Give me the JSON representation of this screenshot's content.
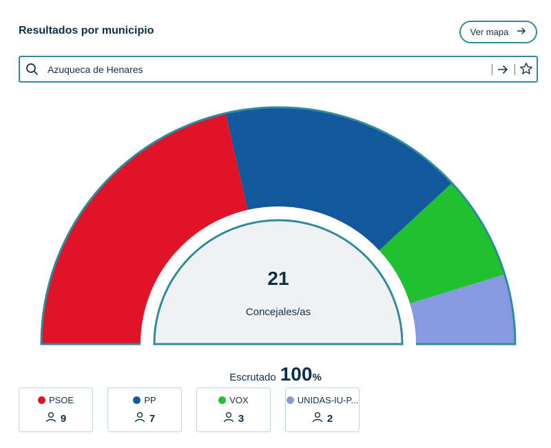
{
  "header": {
    "title": "Resultados por municipio",
    "map_button_label": "Ver mapa"
  },
  "search": {
    "value": "Azuqueca de Henares"
  },
  "icons": {
    "search": "search-icon",
    "go": "arrow-right-icon",
    "favorite": "star-icon",
    "map_arrow": "arrow-right-icon",
    "seats": "person-icon"
  },
  "colors": {
    "accent": "#2f8a9e",
    "center_fill": "#f0f1f3",
    "title": "#0b2f4a"
  },
  "chart_data": {
    "type": "pie",
    "subtype": "parliament-semicircle",
    "total_seats": "21",
    "center_label": "Concejales/as",
    "series": [
      {
        "name": "PSOE",
        "seats": 9,
        "color": "#e01426"
      },
      {
        "name": "PP",
        "seats": 7,
        "color": "#11589d"
      },
      {
        "name": "VOX",
        "seats": 3,
        "color": "#1fc131"
      },
      {
        "name": "UNIDAS-IU-P...",
        "seats": 2,
        "color": "#8799e0"
      }
    ]
  },
  "scrutiny": {
    "label": "Escrutado",
    "value": "100",
    "unit": "%"
  },
  "legend": [
    {
      "name": "PSOE",
      "seats": "9",
      "color": "#e01426"
    },
    {
      "name": "PP",
      "seats": "7",
      "color": "#11589d"
    },
    {
      "name": "VOX",
      "seats": "3",
      "color": "#1fc131"
    },
    {
      "name": "UNIDAS-IU-P...",
      "seats": "2",
      "color": "#8799e0"
    }
  ]
}
